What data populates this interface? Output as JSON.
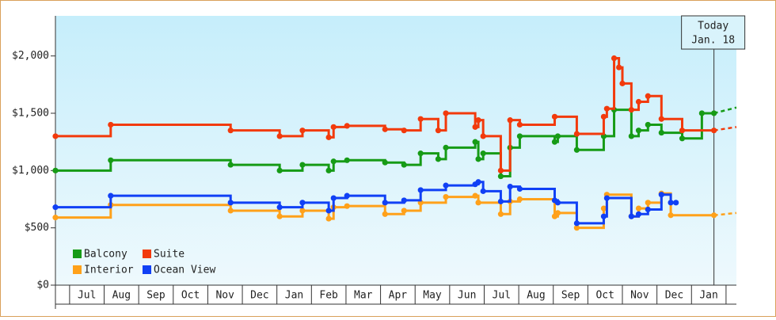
{
  "chart_data": {
    "type": "step-line",
    "xlim": [
      -0.41,
      19.3
    ],
    "xticks": [
      {
        "value": 0.5,
        "label": "Jul"
      },
      {
        "value": 1.5,
        "label": "Aug"
      },
      {
        "value": 2.5,
        "label": "Sep"
      },
      {
        "value": 3.5,
        "label": "Oct"
      },
      {
        "value": 4.5,
        "label": "Nov"
      },
      {
        "value": 5.5,
        "label": "Dec"
      },
      {
        "value": 6.5,
        "label": "Jan"
      },
      {
        "value": 7.5,
        "label": "Feb"
      },
      {
        "value": 8.5,
        "label": "Mar"
      },
      {
        "value": 9.5,
        "label": "Apr"
      },
      {
        "value": 10.5,
        "label": "May"
      },
      {
        "value": 11.5,
        "label": "Jun"
      },
      {
        "value": 12.5,
        "label": "Jul"
      },
      {
        "value": 13.5,
        "label": "Aug"
      },
      {
        "value": 14.5,
        "label": "Sep"
      },
      {
        "value": 15.5,
        "label": "Oct"
      },
      {
        "value": 16.5,
        "label": "Nov"
      },
      {
        "value": 17.5,
        "label": "Dec"
      },
      {
        "value": 18.5,
        "label": "Jan"
      }
    ],
    "ylim": [
      0,
      2350
    ],
    "yticks": [
      {
        "value": 0,
        "label": "$0"
      },
      {
        "value": 500,
        "label": "$500"
      },
      {
        "value": 1000,
        "label": "$1,000"
      },
      {
        "value": 1500,
        "label": "$1,500"
      },
      {
        "value": 2000,
        "label": "$2,000"
      }
    ],
    "today": {
      "x": 18.65,
      "label": "Today",
      "date": "Jan. 18"
    },
    "legend": "lower left",
    "series": [
      {
        "name": "Balcony",
        "color": "#169b16",
        "x": [
          -0.41,
          1.19,
          4.66,
          6.08,
          6.74,
          7.5,
          7.64,
          8.03,
          9.13,
          9.68,
          10.16,
          10.67,
          10.89,
          11.74,
          11.83,
          11.97,
          12.48,
          12.75,
          13.03,
          14.04,
          14.13,
          14.68,
          15.46,
          15.76,
          16.26,
          16.47,
          16.74,
          17.13,
          17.73,
          18.3,
          18.65
        ],
        "values": [
          1000,
          1090,
          1050,
          1000,
          1050,
          1000,
          1080,
          1090,
          1070,
          1050,
          1150,
          1100,
          1200,
          1250,
          1100,
          1150,
          950,
          1200,
          1300,
          1250,
          1300,
          1180,
          1300,
          1530,
          1300,
          1350,
          1400,
          1330,
          1280,
          1500,
          1500
        ],
        "forecast": 1550
      },
      {
        "name": "Suite",
        "color": "#f23a0c",
        "x": [
          -0.41,
          1.19,
          4.66,
          6.08,
          6.74,
          7.5,
          7.64,
          8.03,
          9.13,
          9.68,
          10.16,
          10.67,
          10.89,
          11.74,
          11.83,
          11.97,
          12.48,
          12.75,
          13.03,
          14.04,
          14.68,
          15.46,
          15.55,
          15.76,
          15.9,
          16.0,
          16.26,
          16.47,
          16.74,
          17.13,
          17.73,
          18.65
        ],
        "values": [
          1300,
          1400,
          1350,
          1300,
          1350,
          1290,
          1380,
          1390,
          1360,
          1350,
          1450,
          1350,
          1500,
          1380,
          1440,
          1300,
          1000,
          1440,
          1400,
          1470,
          1320,
          1470,
          1540,
          1980,
          1900,
          1760,
          1530,
          1600,
          1650,
          1450,
          1350,
          1350
        ],
        "forecast": 1380
      },
      {
        "name": "Interior",
        "color": "#ffa11a",
        "x": [
          -0.41,
          1.19,
          4.66,
          6.08,
          6.74,
          7.5,
          7.64,
          8.03,
          9.13,
          9.68,
          10.16,
          10.89,
          11.74,
          11.83,
          12.48,
          12.75,
          13.03,
          14.04,
          14.13,
          14.68,
          15.46,
          15.55,
          16.26,
          16.47,
          16.74,
          17.13,
          17.4,
          18.65
        ],
        "values": [
          590,
          700,
          650,
          600,
          650,
          580,
          680,
          690,
          620,
          650,
          720,
          770,
          780,
          720,
          620,
          730,
          750,
          600,
          630,
          500,
          670,
          790,
          600,
          670,
          720,
          800,
          610,
          610
        ],
        "forecast": 630
      },
      {
        "name": "Ocean View",
        "color": "#1040f5",
        "x": [
          -0.41,
          1.19,
          4.66,
          6.08,
          6.74,
          7.5,
          7.64,
          8.03,
          9.13,
          9.68,
          10.16,
          10.89,
          11.74,
          11.83,
          11.97,
          12.48,
          12.75,
          13.03,
          14.04,
          14.13,
          14.68,
          15.46,
          15.55,
          16.26,
          16.47,
          16.74,
          17.13,
          17.4,
          17.55
        ],
        "values": [
          680,
          780,
          720,
          680,
          720,
          650,
          760,
          780,
          720,
          740,
          830,
          870,
          880,
          900,
          820,
          730,
          860,
          840,
          740,
          720,
          540,
          600,
          760,
          600,
          620,
          660,
          790,
          720,
          720
        ]
      }
    ]
  }
}
